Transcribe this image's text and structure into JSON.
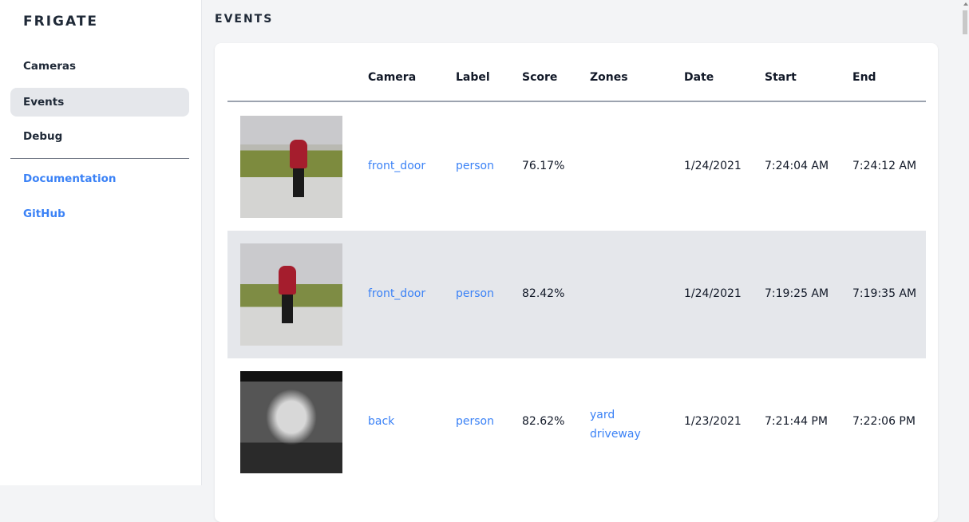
{
  "sidebar": {
    "brand": "FRIGATE",
    "items": [
      {
        "label": "Cameras"
      },
      {
        "label": "Events",
        "active": true
      },
      {
        "label": "Debug"
      }
    ],
    "links": [
      {
        "label": "Documentation"
      },
      {
        "label": "GitHub"
      }
    ]
  },
  "page": {
    "title": "EVENTS"
  },
  "table": {
    "headers": [
      "Camera",
      "Label",
      "Score",
      "Zones",
      "Date",
      "Start",
      "End"
    ],
    "rows": [
      {
        "camera": "front_door",
        "label": "person",
        "score": "76.17%",
        "zones": [
          "",
          ""
        ],
        "date": "1/24/2021",
        "start": "7:24:04 AM",
        "end": "7:24:12 AM"
      },
      {
        "camera": "front_door",
        "label": "person",
        "score": "82.42%",
        "zones": [
          "",
          ""
        ],
        "date": "1/24/2021",
        "start": "7:19:25 AM",
        "end": "7:19:35 AM"
      },
      {
        "camera": "back",
        "label": "person",
        "score": "82.62%",
        "zones": [
          "yard",
          "driveway"
        ],
        "date": "1/23/2021",
        "start": "7:21:44 PM",
        "end": "7:22:06 PM"
      }
    ]
  },
  "colors": {
    "accent": "#3b82f6",
    "active_bg": "#e5e7eb",
    "page_bg": "#f3f4f6"
  }
}
